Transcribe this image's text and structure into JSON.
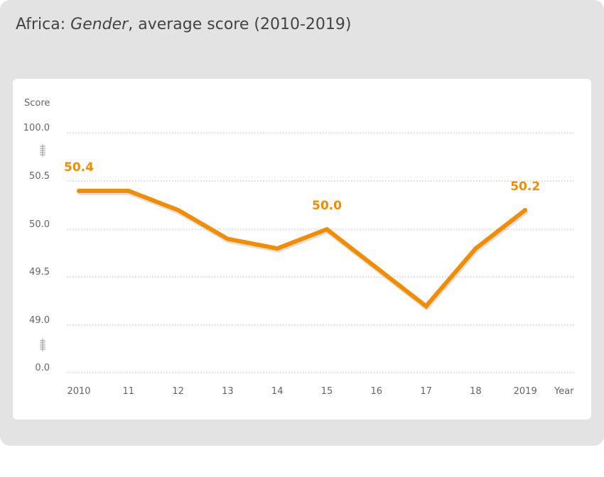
{
  "title": {
    "prefix": "Africa: ",
    "italic": "Gender",
    "suffix": ", average score (2010-2019)"
  },
  "chart_data": {
    "type": "line",
    "title": "Africa: Gender, average score (2010-2019)",
    "ylabel": "Score",
    "xlabel": "Year",
    "x": [
      "2010",
      "11",
      "12",
      "13",
      "14",
      "15",
      "16",
      "17",
      "18",
      "2019"
    ],
    "values": [
      50.4,
      50.4,
      50.2,
      49.9,
      49.8,
      50.0,
      49.6,
      49.2,
      49.8,
      50.2
    ],
    "y_ticks": [
      "100.0",
      "50.5",
      "50.0",
      "49.5",
      "49.0",
      "0.0"
    ],
    "y_axis_breaks": [
      "between 50.5 and 100.0",
      "between 0.0 and 49.0"
    ],
    "data_labels": [
      {
        "index": 0,
        "text": "50.4"
      },
      {
        "index": 5,
        "text": "50.0"
      },
      {
        "index": 9,
        "text": "50.2"
      }
    ],
    "grid": "horizontal dotted",
    "color": "#f28c00"
  }
}
